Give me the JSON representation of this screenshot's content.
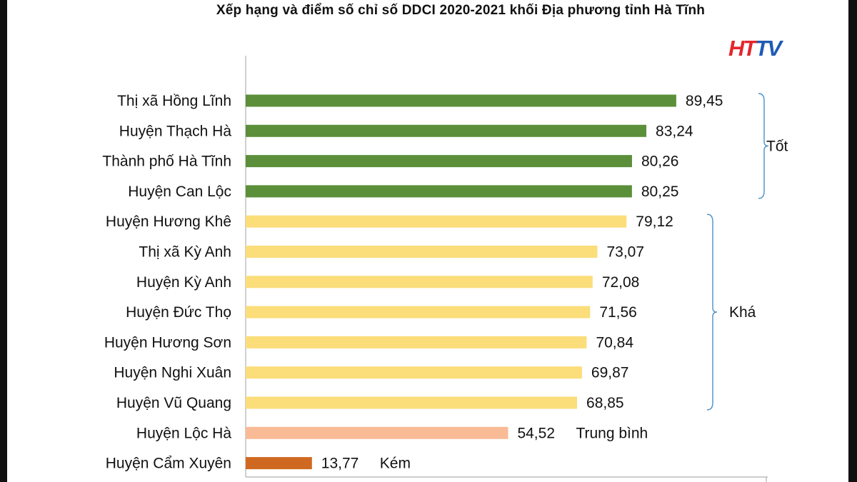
{
  "chart_data": {
    "type": "bar",
    "orientation": "horizontal",
    "title": "Xếp hạng và điểm số chỉ số DDCI 2020-2021 khối Địa phương tỉnh Hà Tĩnh",
    "categories": [
      "Thị xã Hồng Lĩnh",
      "Huyện Thạch Hà",
      "Thành phố Hà Tĩnh",
      "Huyện Can Lộc",
      "Huyện Hương Khê",
      "Thị xã Kỳ Anh",
      "Huyện Kỳ Anh",
      "Huyện Đức Thọ",
      "Huyện Hương Sơn",
      "Huyện Nghi Xuân",
      "Huyện Vũ Quang",
      "Huyện Lộc Hà",
      "Huyện Cẩm Xuyên"
    ],
    "values": [
      89.45,
      83.24,
      80.26,
      80.25,
      79.12,
      73.07,
      72.08,
      71.56,
      70.84,
      69.87,
      68.85,
      54.52,
      13.77
    ],
    "value_labels": [
      "89,45",
      "83,24",
      "80,26",
      "80,25",
      "79,12",
      "73,07",
      "72,08",
      "71,56",
      "70,84",
      "69,87",
      "68,85",
      "54,52",
      "13,77"
    ],
    "bar_colors": [
      "#5b8f3a",
      "#5b8f3a",
      "#5b8f3a",
      "#5b8f3a",
      "#fbdd7a",
      "#fbdd7a",
      "#fbdd7a",
      "#fbdd7a",
      "#fbdd7a",
      "#fbdd7a",
      "#fbdd7a",
      "#f8bb96",
      "#cf6921"
    ],
    "groups": [
      {
        "label": "Tốt",
        "from": 0,
        "to": 3,
        "bracket": true
      },
      {
        "label": "Khá",
        "from": 4,
        "to": 10,
        "bracket": true
      },
      {
        "label": "Trung bình",
        "from": 11,
        "to": 11,
        "bracket": false
      },
      {
        "label": "Kém",
        "from": 12,
        "to": 12,
        "bracket": false
      }
    ],
    "xlim": [
      0,
      100
    ],
    "grid": false,
    "legend": "none",
    "bracket_color": "#4a90c8"
  },
  "logo": {
    "text_red": "HT",
    "text_blue": "TV"
  }
}
